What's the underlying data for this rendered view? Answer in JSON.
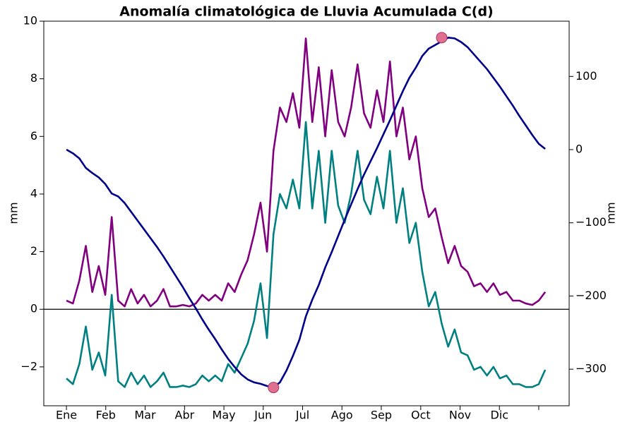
{
  "chart_data": {
    "type": "line",
    "title": "Anomalía climatológica de Lluvia Acumulada C(d)",
    "ylabel": "mm",
    "y2label": "mm",
    "x": [
      0,
      5,
      10,
      15,
      20,
      25,
      30,
      35,
      40,
      45,
      50,
      55,
      60,
      65,
      70,
      75,
      80,
      85,
      90,
      95,
      100,
      105,
      110,
      115,
      120,
      125,
      130,
      135,
      140,
      145,
      150,
      155,
      160,
      165,
      170,
      175,
      180,
      185,
      190,
      195,
      200,
      205,
      210,
      215,
      220,
      225,
      230,
      235,
      240,
      245,
      250,
      255,
      260,
      265,
      270,
      275,
      280,
      285,
      290,
      295,
      300,
      305,
      310,
      315,
      320,
      325,
      330,
      335,
      340,
      345,
      350,
      355,
      360,
      365,
      370
    ],
    "series": [
      {
        "color": "#800080",
        "axis": "y",
        "values": [
          0.3,
          0.2,
          1.0,
          2.2,
          0.6,
          1.5,
          0.5,
          3.2,
          0.3,
          0.1,
          0.7,
          0.2,
          0.5,
          0.1,
          0.3,
          0.7,
          0.1,
          0.1,
          0.15,
          0.1,
          0.2,
          0.5,
          0.3,
          0.5,
          0.3,
          0.9,
          0.6,
          1.2,
          1.7,
          2.6,
          3.7,
          2.0,
          5.5,
          7.0,
          6.5,
          7.5,
          6.3,
          9.4,
          6.5,
          8.4,
          6.0,
          8.3,
          6.5,
          6.0,
          7.0,
          8.5,
          6.8,
          6.3,
          7.6,
          6.5,
          8.6,
          6.0,
          7.0,
          5.2,
          6.0,
          4.2,
          3.2,
          3.5,
          2.5,
          1.6,
          2.2,
          1.5,
          1.3,
          0.8,
          0.9,
          0.6,
          0.9,
          0.5,
          0.6,
          0.3,
          0.3,
          0.2,
          0.15,
          0.3,
          0.6
        ]
      },
      {
        "color": "#008080",
        "axis": "y",
        "values": [
          -2.4,
          -2.6,
          -1.9,
          -0.6,
          -2.1,
          -1.5,
          -2.3,
          0.5,
          -2.5,
          -2.7,
          -2.2,
          -2.6,
          -2.3,
          -2.7,
          -2.5,
          -2.2,
          -2.7,
          -2.7,
          -2.65,
          -2.7,
          -2.6,
          -2.3,
          -2.5,
          -2.3,
          -2.5,
          -1.9,
          -2.2,
          -1.7,
          -1.2,
          -0.4,
          0.9,
          -1.0,
          2.6,
          4.0,
          3.5,
          4.5,
          3.5,
          6.5,
          3.5,
          5.5,
          3.0,
          5.5,
          3.6,
          3.0,
          4.0,
          5.5,
          3.8,
          3.3,
          4.6,
          3.5,
          5.5,
          3.0,
          4.2,
          2.3,
          3.0,
          1.3,
          0.1,
          0.6,
          -0.5,
          -1.3,
          -0.7,
          -1.5,
          -1.6,
          -2.1,
          -2.0,
          -2.3,
          -2.0,
          -2.4,
          -2.3,
          -2.6,
          -2.6,
          -2.7,
          -2.7,
          -2.6,
          -2.1
        ]
      },
      {
        "color": "#00008b",
        "axis": "y2",
        "values": [
          0,
          -5,
          -12,
          -25,
          -32,
          -38,
          -47,
          -60,
          -64,
          -73,
          -85,
          -97,
          -109,
          -121,
          -133,
          -146,
          -160,
          -174,
          -188,
          -203,
          -217,
          -232,
          -246,
          -259,
          -273,
          -286,
          -297,
          -307,
          -314,
          -318,
          -320,
          -323,
          -325,
          -318,
          -302,
          -282,
          -260,
          -228,
          -205,
          -185,
          -161,
          -140,
          -118,
          -96,
          -75,
          -54,
          -34,
          -16,
          2,
          21,
          40,
          60,
          80,
          98,
          112,
          128,
          138,
          143,
          148,
          153,
          152,
          147,
          140,
          130,
          120,
          110,
          98,
          86,
          73,
          60,
          46,
          33,
          20,
          8,
          1
        ]
      }
    ],
    "markers": {
      "color": "#e0708f",
      "axis": "y2",
      "x": [
        160,
        290
      ],
      "values": [
        -325,
        153
      ]
    },
    "hline": 0,
    "xlim": [
      -17.5,
      388.5
    ],
    "xticks": [
      {
        "value": 0,
        "label": "Ene"
      },
      {
        "value": 30.4,
        "label": "Feb"
      },
      {
        "value": 60.8,
        "label": "Mar"
      },
      {
        "value": 91.3,
        "label": "Abr"
      },
      {
        "value": 121.7,
        "label": "May"
      },
      {
        "value": 152.1,
        "label": "Jun"
      },
      {
        "value": 182.5,
        "label": "Jul"
      },
      {
        "value": 212.9,
        "label": "Ago"
      },
      {
        "value": 243.3,
        "label": "Sep"
      },
      {
        "value": 273.8,
        "label": "Oct"
      },
      {
        "value": 304.2,
        "label": "Nov"
      },
      {
        "value": 334.6,
        "label": "Dic"
      },
      {
        "value": 365
      }
    ],
    "ylim": [
      -3.35,
      10.0
    ],
    "yticks": [
      {
        "value": -2,
        "label": "−2"
      },
      0,
      2,
      4,
      6,
      8,
      10
    ],
    "y2lim": [
      -350,
      175.5
    ],
    "y2ticks": [
      {
        "value": -300,
        "label": "−300"
      },
      {
        "value": -200,
        "label": "−200"
      },
      {
        "value": -100,
        "label": "−100"
      },
      0,
      100
    ]
  }
}
